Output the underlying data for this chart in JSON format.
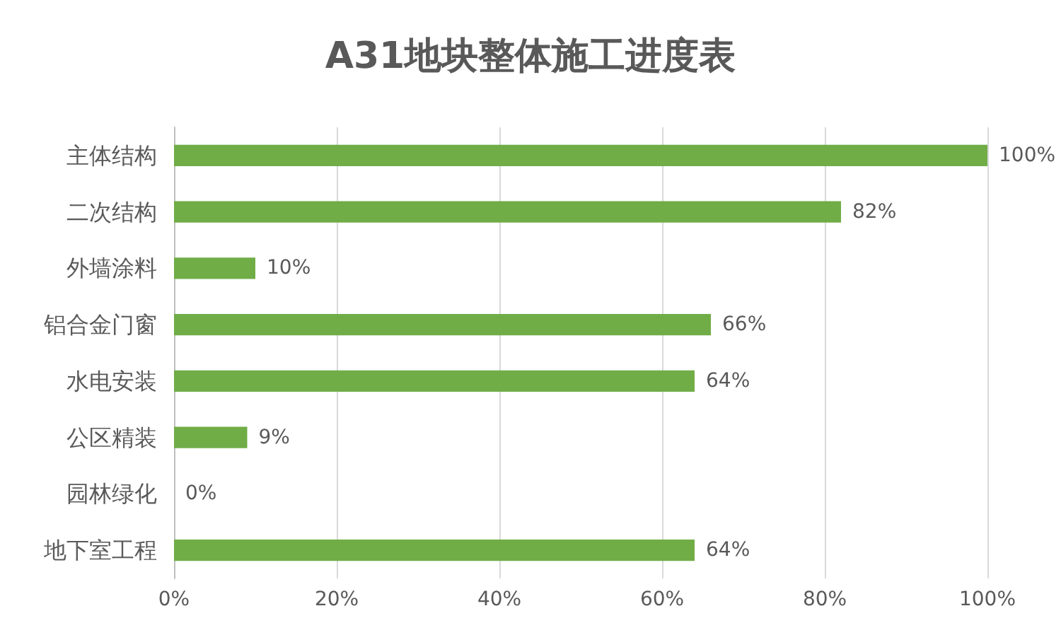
{
  "chart_data": {
    "type": "bar",
    "title": "A31地块整体施工进度表",
    "orientation": "horizontal",
    "categories": [
      "主体结构",
      "二次结构",
      "外墙涂料",
      "铝合金门窗",
      "水电安装",
      "公区精装",
      "园林绿化",
      "地下室工程"
    ],
    "values": [
      100,
      82,
      10,
      66,
      64,
      9,
      0,
      64
    ],
    "value_labels": [
      "100%",
      "82%",
      "10%",
      "66%",
      "64%",
      "9%",
      "0%",
      "64%"
    ],
    "color": "#70ad47",
    "xlim": [
      0,
      100
    ],
    "xticks": [
      {
        "value": 0,
        "label": "0%"
      },
      {
        "value": 20,
        "label": "20%"
      },
      {
        "value": 40,
        "label": "40%"
      },
      {
        "value": 60,
        "label": "60%"
      },
      {
        "value": 80,
        "label": "80%"
      },
      {
        "value": 100,
        "label": "100%"
      }
    ],
    "grid": "x"
  }
}
